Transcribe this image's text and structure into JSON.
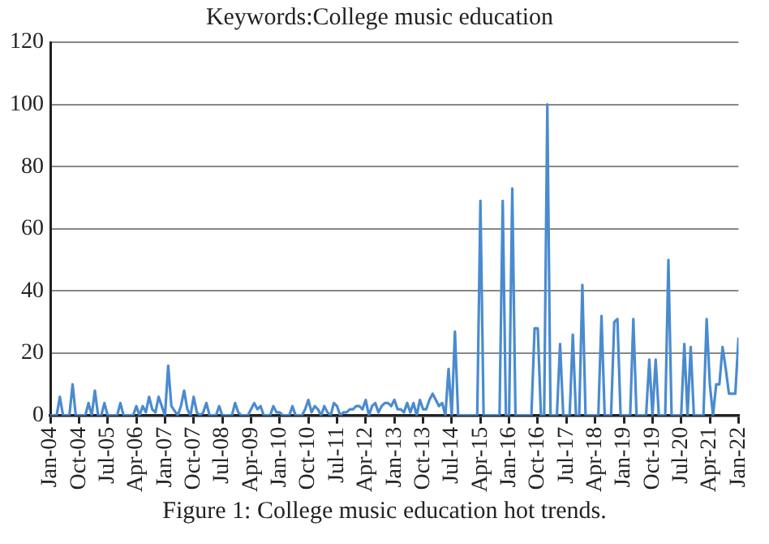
{
  "chart_data": {
    "type": "line",
    "title": "Keywords:College music education",
    "annotations": [
      "Figure 1: College music education hot trends."
    ],
    "x": [
      "2004-01",
      "2004-03",
      "2004-04",
      "2004-05",
      "2004-07",
      "2004-08",
      "2004-09",
      "2004-12",
      "2005-01",
      "2005-02",
      "2005-03",
      "2005-04",
      "2005-05",
      "2005-06",
      "2005-07",
      "2005-10",
      "2005-11",
      "2005-12",
      "2006-03",
      "2006-04",
      "2006-05",
      "2006-06",
      "2006-07",
      "2006-08",
      "2006-09",
      "2006-10",
      "2006-11",
      "2006-12",
      "2007-01",
      "2007-02",
      "2007-03",
      "2007-05",
      "2007-06",
      "2007-07",
      "2007-08",
      "2007-09",
      "2007-10",
      "2007-11",
      "2007-12",
      "2008-01",
      "2008-02",
      "2008-03",
      "2008-05",
      "2008-06",
      "2008-07",
      "2008-10",
      "2008-11",
      "2008-12",
      "2009-01",
      "2009-03",
      "2009-04",
      "2009-05",
      "2009-06",
      "2009-07",
      "2009-08",
      "2009-10",
      "2009-11",
      "2009-12",
      "2010-01",
      "2010-02",
      "2010-04",
      "2010-05",
      "2010-06",
      "2010-08",
      "2010-09",
      "2010-10",
      "2010-11",
      "2010-12",
      "2011-01",
      "2011-02",
      "2011-03",
      "2011-04",
      "2011-05",
      "2011-06",
      "2011-07",
      "2011-08",
      "2011-09",
      "2011-10",
      "2011-11",
      "2011-12",
      "2012-01",
      "2012-02",
      "2012-03",
      "2012-04",
      "2012-05",
      "2012-06",
      "2012-07",
      "2012-08",
      "2012-09",
      "2012-10",
      "2012-11",
      "2012-12",
      "2013-01",
      "2013-02",
      "2013-03",
      "2013-04",
      "2013-05",
      "2013-06",
      "2013-07",
      "2013-08",
      "2013-09",
      "2013-10",
      "2013-11",
      "2013-12",
      "2014-01",
      "2014-02",
      "2014-03",
      "2014-04",
      "2014-05",
      "2014-06",
      "2014-07",
      "2014-08",
      "2014-09",
      "2015-03",
      "2015-04",
      "2015-05",
      "2015-10",
      "2015-11",
      "2015-12",
      "2016-01",
      "2016-02",
      "2016-03",
      "2016-08",
      "2016-09",
      "2016-10",
      "2016-11",
      "2016-12",
      "2017-01",
      "2017-02",
      "2017-04",
      "2017-05",
      "2017-06",
      "2017-08",
      "2017-09",
      "2017-10",
      "2017-11",
      "2017-12",
      "2018-01",
      "2018-05",
      "2018-06",
      "2018-07",
      "2018-09",
      "2018-10",
      "2018-11",
      "2018-12",
      "2019-03",
      "2019-04",
      "2019-05",
      "2019-08",
      "2019-09",
      "2019-10",
      "2019-11",
      "2019-12",
      "2020-02",
      "2020-03",
      "2020-04",
      "2020-07",
      "2020-08",
      "2020-09",
      "2020-10",
      "2020-11",
      "2021-02",
      "2021-03",
      "2021-04",
      "2021-05",
      "2021-06",
      "2021-07",
      "2021-08",
      "2021-09",
      "2021-10",
      "2021-11",
      "2021-12",
      "2022-01"
    ],
    "series": [
      {
        "color": "#4a8bd0",
        "values": [
          0,
          0,
          6,
          0,
          0,
          10,
          0,
          0,
          4,
          0,
          8,
          0,
          0,
          4,
          0,
          0,
          4,
          0,
          0,
          3,
          0,
          3,
          1,
          6,
          2,
          1,
          6,
          3,
          0,
          16,
          3,
          0,
          3,
          8,
          2,
          0,
          6,
          1,
          0,
          1,
          4,
          0,
          0,
          3,
          0,
          0,
          4,
          1,
          0,
          0,
          2,
          4,
          2,
          3,
          0,
          0,
          3,
          1,
          1,
          0,
          0,
          3,
          0,
          0,
          2,
          5,
          1,
          3,
          2,
          0,
          3,
          1,
          0,
          4,
          3,
          0,
          1,
          1,
          2,
          2,
          3,
          3,
          2,
          5,
          0,
          3,
          4,
          1,
          3,
          4,
          4,
          3,
          5,
          2,
          2,
          1,
          4,
          1,
          4,
          0,
          5,
          2,
          2,
          5,
          7,
          5,
          3,
          4,
          0,
          15,
          0,
          27,
          0,
          0,
          69,
          0,
          0,
          69,
          0,
          0,
          73,
          0,
          0,
          28,
          28,
          0,
          0,
          100,
          0,
          0,
          23,
          0,
          0,
          26,
          0,
          0,
          42,
          0,
          0,
          32,
          0,
          0,
          30,
          31,
          0,
          0,
          31,
          0,
          0,
          18,
          0,
          18,
          0,
          0,
          50,
          0,
          0,
          23,
          0,
          22,
          0,
          0,
          31,
          10,
          0,
          10,
          10,
          22,
          15,
          7,
          7,
          7,
          25
        ]
      }
    ],
    "xlim": [
      "2004-01",
      "2022-01"
    ],
    "xticks": [
      {
        "value": "2004-01",
        "label": "Jan-04"
      },
      {
        "value": "2004-10",
        "label": "Oct-04"
      },
      {
        "value": "2005-07",
        "label": "Jul-05"
      },
      {
        "value": "2006-04",
        "label": "Apr-06"
      },
      {
        "value": "2007-01",
        "label": "Jan-07"
      },
      {
        "value": "2007-10",
        "label": "Oct-07"
      },
      {
        "value": "2008-07",
        "label": "Jul-08"
      },
      {
        "value": "2009-04",
        "label": "Apr-09"
      },
      {
        "value": "2010-01",
        "label": "Jan-10"
      },
      {
        "value": "2010-10",
        "label": "Oct-10"
      },
      {
        "value": "2011-07",
        "label": "Jul-11"
      },
      {
        "value": "2012-04",
        "label": "Apr-12"
      },
      {
        "value": "2013-01",
        "label": "Jan-13"
      },
      {
        "value": "2013-10",
        "label": "Oct-13"
      },
      {
        "value": "2014-07",
        "label": "Jul-14"
      },
      {
        "value": "2015-04",
        "label": "Apr-15"
      },
      {
        "value": "2016-01",
        "label": "Jan-16"
      },
      {
        "value": "2016-10",
        "label": "Oct-16"
      },
      {
        "value": "2017-07",
        "label": "Jul-17"
      },
      {
        "value": "2018-04",
        "label": "Apr-18"
      },
      {
        "value": "2019-01",
        "label": "Jan-19"
      },
      {
        "value": "2019-10",
        "label": "Oct-19"
      },
      {
        "value": "2020-07",
        "label": "Jul-20"
      },
      {
        "value": "2021-04",
        "label": "Apr-21"
      },
      {
        "value": "2022-01",
        "label": "Jan-22"
      }
    ],
    "ylim": [
      0,
      120
    ],
    "yticks": [
      0,
      20,
      40,
      60,
      80,
      100,
      120
    ],
    "grid": "y",
    "legend": false,
    "marker": "none",
    "line_style": "solid"
  }
}
